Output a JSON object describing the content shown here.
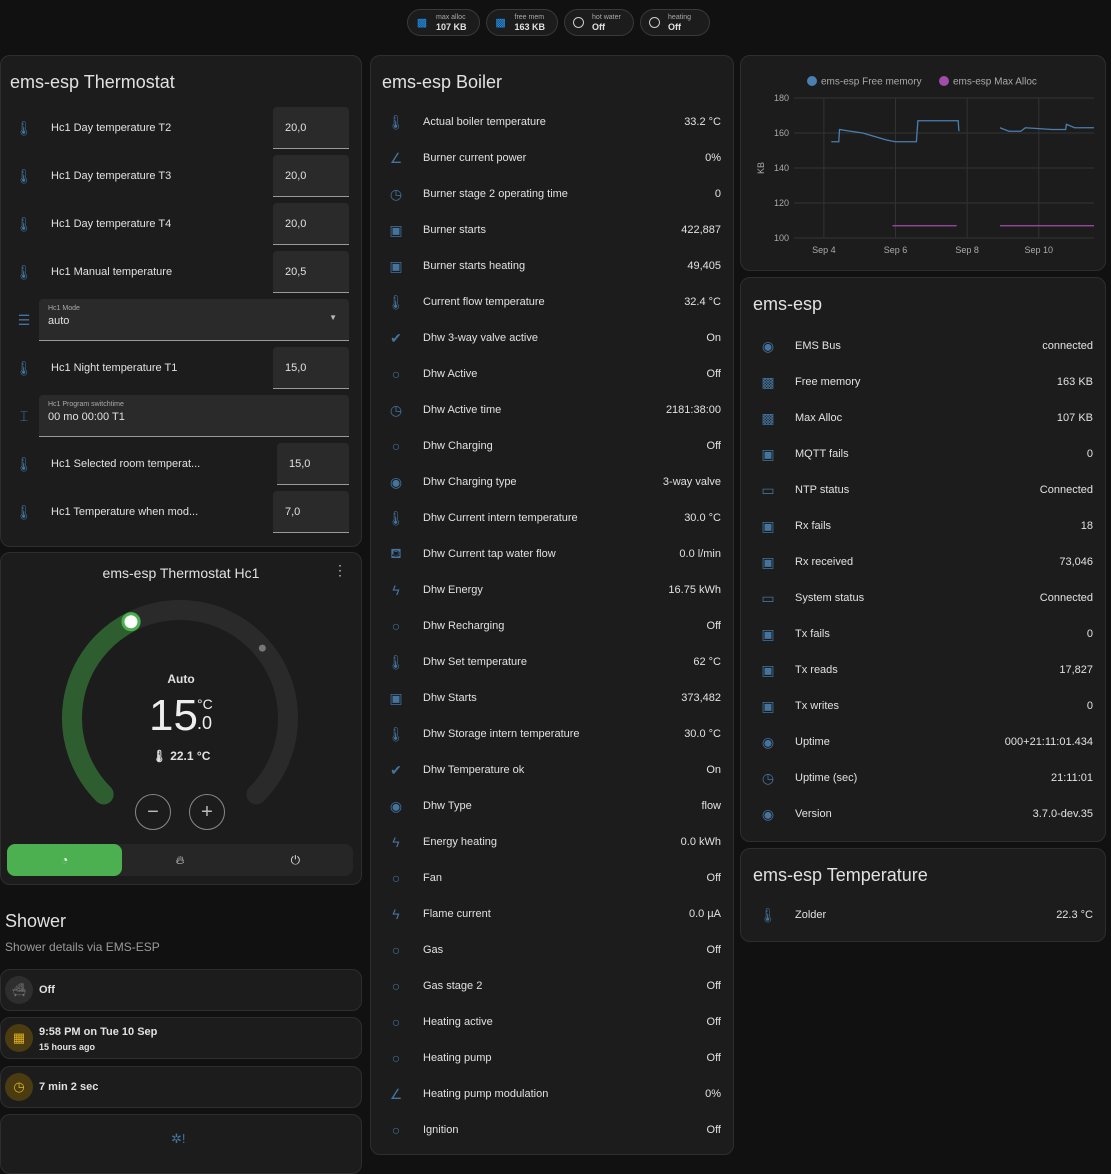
{
  "chips": [
    {
      "label": "max alloc",
      "value": "107 KB",
      "icon": "chip-icon"
    },
    {
      "label": "free mem",
      "value": "163 KB",
      "icon": "chip-icon"
    },
    {
      "label": "hot water",
      "value": "Off",
      "icon": "circle-outline-icon"
    },
    {
      "label": "heating",
      "value": "Off",
      "icon": "circle-outline-icon"
    }
  ],
  "thermostat": {
    "title": "ems-esp Thermostat",
    "rows": [
      {
        "type": "number",
        "label": "Hc1 Day temperature T2",
        "value": "20,0"
      },
      {
        "type": "number",
        "label": "Hc1 Day temperature T3",
        "value": "20,0"
      },
      {
        "type": "number",
        "label": "Hc1 Day temperature T4",
        "value": "20,0"
      },
      {
        "type": "number",
        "label": "Hc1 Manual temperature",
        "value": "20,5"
      },
      {
        "type": "select",
        "label": "Hc1 Mode",
        "value": "auto"
      },
      {
        "type": "number",
        "label": "Hc1 Night temperature T1",
        "value": "15,0"
      },
      {
        "type": "text",
        "label": "Hc1 Program switchtime",
        "value": "00 mo 00:00 T1"
      },
      {
        "type": "number",
        "label": "Hc1 Selected room temperat...",
        "value": "15,0"
      },
      {
        "type": "number",
        "label": "Hc1 Temperature when mod...",
        "value": "7,0"
      }
    ]
  },
  "climate": {
    "title": "ems-esp Thermostat Hc1",
    "mode": "Auto",
    "target_int": "15",
    "target_dec": ".0",
    "unit": "°C",
    "current": "22.1 °C",
    "target": 15.0,
    "current_value": 22.1,
    "min": 5,
    "max": 30,
    "accent": "#4caf50",
    "arc_color": "#2e5e30"
  },
  "shower": {
    "title": "Shower",
    "subtitle": "Shower details via EMS-ESP",
    "rows": [
      {
        "primary": "Off",
        "icon": "bathtub-icon"
      },
      {
        "primary": "9:58 PM on Tue 10 Sep",
        "secondary": "15 hours ago",
        "icon": "calendar-icon"
      },
      {
        "primary": "7 min 2 sec",
        "icon": "timer-icon"
      }
    ]
  },
  "boiler": {
    "title": "ems-esp Boiler",
    "rows": [
      {
        "icon": "thermometer",
        "label": "Actual boiler temperature",
        "value": "33.2 °C"
      },
      {
        "icon": "angle",
        "label": "Burner current power",
        "value": "0%"
      },
      {
        "icon": "clock",
        "label": "Burner stage 2 operating time",
        "value": "0"
      },
      {
        "icon": "counter",
        "label": "Burner starts",
        "value": "422,887"
      },
      {
        "icon": "counter",
        "label": "Burner starts heating",
        "value": "49,405"
      },
      {
        "icon": "thermometer",
        "label": "Current flow temperature",
        "value": "32.4 °C"
      },
      {
        "icon": "check-circle",
        "label": "Dhw 3-way valve active",
        "value": "On"
      },
      {
        "icon": "circle",
        "label": "Dhw Active",
        "value": "Off"
      },
      {
        "icon": "clock",
        "label": "Dhw Active time",
        "value": "2181:38:00"
      },
      {
        "icon": "circle",
        "label": "Dhw Charging",
        "value": "Off"
      },
      {
        "icon": "eye",
        "label": "Dhw Charging type",
        "value": "3-way valve"
      },
      {
        "icon": "thermometer",
        "label": "Dhw Current intern temperature",
        "value": "30.0 °C"
      },
      {
        "icon": "tap",
        "label": "Dhw Current tap water flow",
        "value": "0.0 l/min"
      },
      {
        "icon": "flash",
        "label": "Dhw Energy",
        "value": "16.75 kWh"
      },
      {
        "icon": "circle",
        "label": "Dhw Recharging",
        "value": "Off"
      },
      {
        "icon": "thermometer",
        "label": "Dhw Set temperature",
        "value": "62 °C"
      },
      {
        "icon": "counter",
        "label": "Dhw Starts",
        "value": "373,482"
      },
      {
        "icon": "thermometer",
        "label": "Dhw Storage intern temperature",
        "value": "30.0 °C"
      },
      {
        "icon": "check-circle",
        "label": "Dhw Temperature ok",
        "value": "On"
      },
      {
        "icon": "eye",
        "label": "Dhw Type",
        "value": "flow"
      },
      {
        "icon": "flash",
        "label": "Energy heating",
        "value": "0.0 kWh"
      },
      {
        "icon": "circle",
        "label": "Fan",
        "value": "Off"
      },
      {
        "icon": "flash-circle",
        "label": "Flame current",
        "value": "0.0 µA"
      },
      {
        "icon": "circle",
        "label": "Gas",
        "value": "Off"
      },
      {
        "icon": "circle",
        "label": "Gas stage 2",
        "value": "Off"
      },
      {
        "icon": "circle",
        "label": "Heating active",
        "value": "Off"
      },
      {
        "icon": "circle",
        "label": "Heating pump",
        "value": "Off"
      },
      {
        "icon": "angle",
        "label": "Heating pump modulation",
        "value": "0%"
      },
      {
        "icon": "circle",
        "label": "Ignition",
        "value": "Off"
      }
    ]
  },
  "chart_data": {
    "type": "line",
    "ylabel": "KB",
    "ylim": [
      100,
      180
    ],
    "yticks": [
      "100",
      "120",
      "140",
      "160",
      "180"
    ],
    "xticks": [
      "Sep 4",
      "Sep 6",
      "Sep 8",
      "Sep 10"
    ],
    "grid": true,
    "legend": "top",
    "series": [
      {
        "name": "ems-esp Free memory",
        "color": "#4a7fb0",
        "points": [
          [
            "2024-09-04T05:00",
            155
          ],
          [
            "2024-09-04T10:00",
            155
          ],
          [
            "2024-09-04T10:30",
            162
          ],
          [
            "2024-09-04T18:00",
            161
          ],
          [
            "2024-09-05T02:00",
            160
          ],
          [
            "2024-09-05T10:00",
            158
          ],
          [
            "2024-09-05T18:00",
            156
          ],
          [
            "2024-09-06T00:00",
            155
          ],
          [
            "2024-09-06T14:00",
            155
          ],
          [
            "2024-09-06T15:00",
            167
          ],
          [
            "2024-09-07T18:00",
            167
          ],
          [
            "2024-09-07T18:30",
            161
          ],
          null,
          [
            "2024-09-08T22:00",
            163
          ],
          [
            "2024-09-09T04:00",
            161
          ],
          [
            "2024-09-09T12:00",
            161
          ],
          [
            "2024-09-09T15:00",
            163
          ],
          [
            "2024-09-10T09:00",
            162
          ],
          [
            "2024-09-10T18:00",
            162
          ],
          [
            "2024-09-10T18:30",
            165
          ],
          [
            "2024-09-11T00:00",
            163
          ],
          [
            "2024-09-11T13:00",
            163
          ]
        ]
      },
      {
        "name": "ems-esp Max Alloc",
        "color": "#a04ca8",
        "points": [
          [
            "2024-09-05T22:00",
            107
          ],
          [
            "2024-09-07T17:00",
            107
          ],
          null,
          [
            "2024-09-08T22:00",
            107
          ],
          [
            "2024-09-11T13:00",
            107
          ]
        ]
      }
    ]
  },
  "system": {
    "title": "ems-esp",
    "rows": [
      {
        "icon": "eye",
        "label": "EMS Bus",
        "value": "connected"
      },
      {
        "icon": "chip",
        "label": "Free memory",
        "value": "163 KB"
      },
      {
        "icon": "chip",
        "label": "Max Alloc",
        "value": "107 KB"
      },
      {
        "icon": "counter",
        "label": "MQTT fails",
        "value": "0"
      },
      {
        "icon": "monitor",
        "label": "NTP status",
        "value": "Connected"
      },
      {
        "icon": "counter",
        "label": "Rx fails",
        "value": "18"
      },
      {
        "icon": "counter",
        "label": "Rx received",
        "value": "73,046"
      },
      {
        "icon": "monitor",
        "label": "System status",
        "value": "Connected"
      },
      {
        "icon": "counter",
        "label": "Tx fails",
        "value": "0"
      },
      {
        "icon": "counter",
        "label": "Tx reads",
        "value": "17,827"
      },
      {
        "icon": "counter",
        "label": "Tx writes",
        "value": "0"
      },
      {
        "icon": "eye",
        "label": "Uptime",
        "value": "000+21:11:01.434"
      },
      {
        "icon": "clock",
        "label": "Uptime (sec)",
        "value": "21:11:01"
      },
      {
        "icon": "eye",
        "label": "Version",
        "value": "3.7.0-dev.35"
      }
    ]
  },
  "temperature": {
    "title": "ems-esp Temperature",
    "rows": [
      {
        "icon": "thermometer",
        "label": "Zolder",
        "value": "22.3 °C"
      }
    ]
  }
}
